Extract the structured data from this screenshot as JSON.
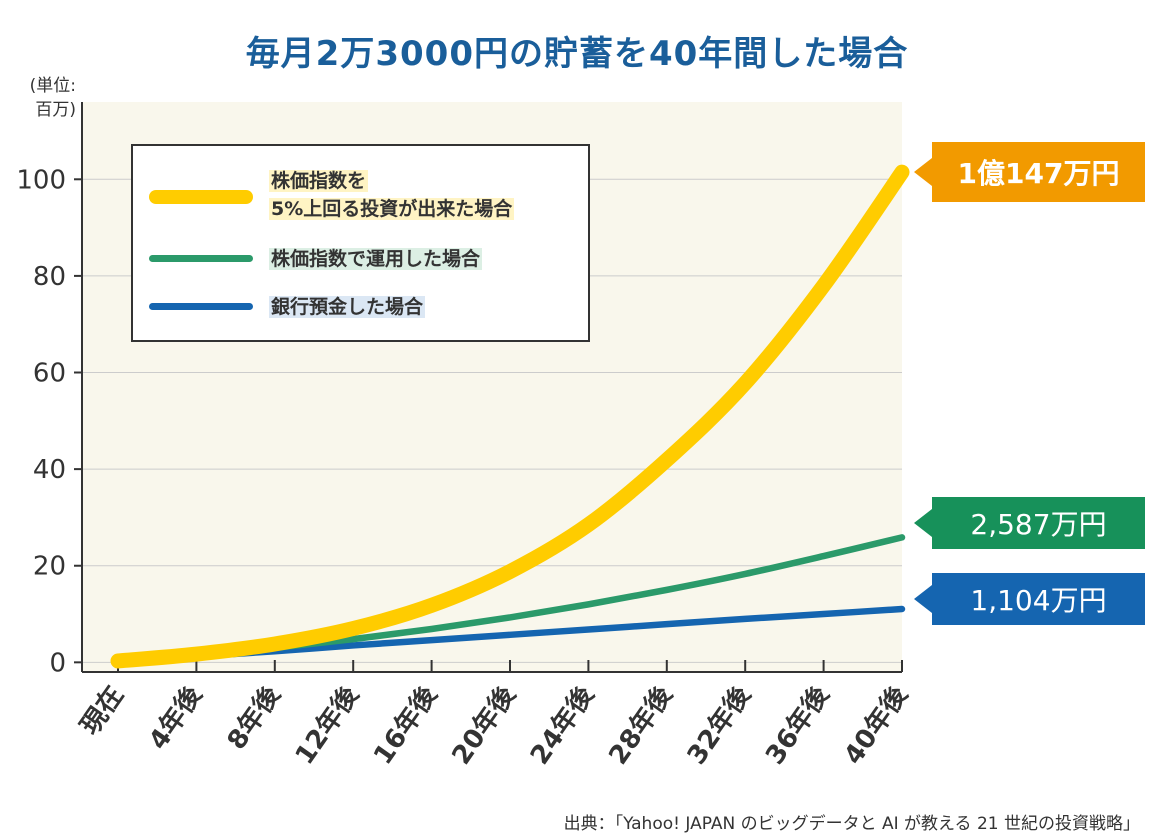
{
  "title": "毎月2万3000円の貯蓄を40年間した場合",
  "unit_label": "(単位:\n百万)",
  "source": "出典：「Yahoo! JAPAN のビッグデータと AI が教える 21 世紀の投資戦略」",
  "colors": {
    "stock_plus5": "#ffcc00",
    "stock_index": "#2b9a6a",
    "bank": "#1565b0",
    "plot_bg": "#f9f7ec"
  },
  "legend": {
    "item1_line1": "株価指数を",
    "item1_line2": "5%上回る投資が出来た場合",
    "item2": "株価指数で運用した場合",
    "item3": "銀行預金した場合"
  },
  "end_labels": {
    "stock_plus5": "1億147万円",
    "stock_index": "2,587万円",
    "bank": "1,104万円"
  },
  "chart_data": {
    "type": "line",
    "x": [
      "現在",
      "4年後",
      "8年後",
      "12年後",
      "16年後",
      "20年後",
      "24年後",
      "28年後",
      "32年後",
      "36年後",
      "40年後"
    ],
    "ylabel": "(単位:百万)",
    "ylim": [
      -2,
      116
    ],
    "yticks": [
      0,
      20,
      40,
      60,
      80,
      100
    ],
    "grid": true,
    "legend_position": "top-left",
    "series": [
      {
        "name": "株価指数を5%上回る投資が出来た場合",
        "values": [
          0.28,
          1.7,
          3.8,
          7.0,
          11.8,
          18.8,
          28.5,
          41.9,
          57.8,
          78.0,
          101.47
        ]
      },
      {
        "name": "株価指数で運用した場合",
        "values": [
          0.28,
          1.4,
          3.0,
          4.8,
          6.9,
          9.3,
          12.0,
          15.0,
          18.3,
          22.0,
          25.87
        ]
      },
      {
        "name": "銀行預金した場合",
        "values": [
          0.28,
          1.2,
          2.3,
          3.5,
          4.6,
          5.7,
          6.8,
          7.9,
          9.0,
          10.0,
          11.04
        ]
      }
    ]
  }
}
